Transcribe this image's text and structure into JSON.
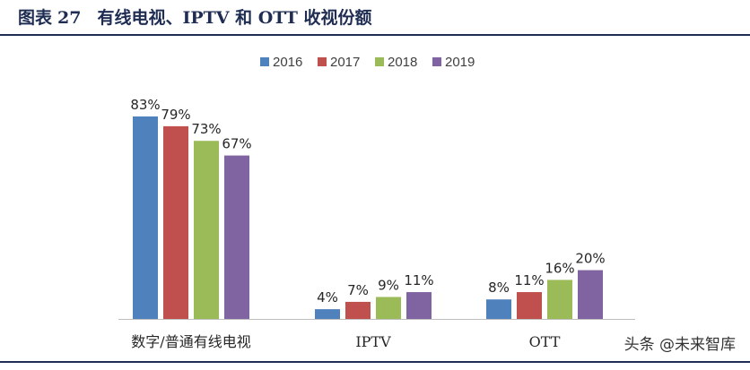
{
  "figure": {
    "label": "图表",
    "number": "27",
    "caption": "有线电视、IPTV 和 OTT 收视份额"
  },
  "watermark": "头条 @未来智库",
  "colors": {
    "s2016": "#4f81bd",
    "s2017": "#c0504d",
    "s2018": "#9bbb59",
    "s2019": "#8064a2",
    "title": "#1f2d52"
  },
  "chart_data": {
    "type": "bar",
    "title": "有线电视、IPTV 和 OTT 收视份额",
    "categories": [
      "数字/普通有线电视",
      "IPTV",
      "OTT"
    ],
    "series": [
      {
        "name": "2016",
        "values": [
          83,
          4,
          8
        ],
        "labels": [
          "83%",
          "4%",
          "8%"
        ]
      },
      {
        "name": "2017",
        "values": [
          79,
          7,
          11
        ],
        "labels": [
          "79%",
          "7%",
          "11%"
        ]
      },
      {
        "name": "2018",
        "values": [
          73,
          9,
          16
        ],
        "labels": [
          "73%",
          "9%",
          "16%"
        ]
      },
      {
        "name": "2019",
        "values": [
          67,
          11,
          20
        ],
        "labels": [
          "67%",
          "11%",
          "20%"
        ]
      }
    ],
    "ylim": [
      0,
      100
    ],
    "unit": "%",
    "grid": false,
    "legend": "top-center",
    "xlabel": "",
    "ylabel": ""
  }
}
